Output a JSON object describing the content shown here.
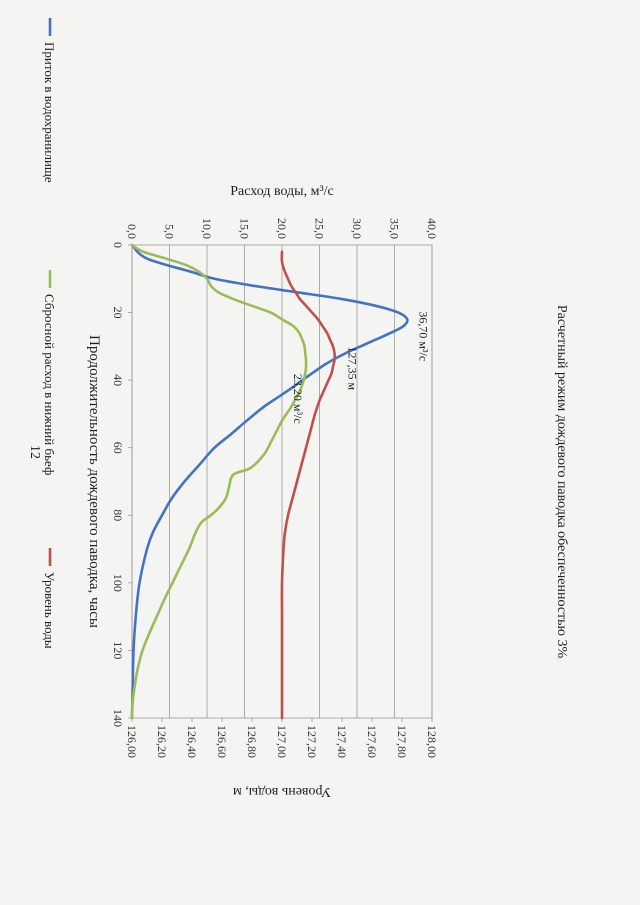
{
  "page": {
    "number": "12"
  },
  "chart_data": {
    "type": "line",
    "title": "Расчетный режим дождевого паводка обеспеченностью 3%",
    "xlabel": "Продолжительность дождевого паводка, часы",
    "ylabel": "Расход воды, м³/с",
    "y2label": "Уровень воды, м",
    "xlim": [
      0,
      140
    ],
    "ylim": [
      0,
      40
    ],
    "y2lim": [
      126,
      128
    ],
    "x_ticks": [
      "0",
      "20",
      "40",
      "60",
      "80",
      "100",
      "120",
      "140"
    ],
    "y_ticks": [
      "0,0",
      "5,0",
      "10,0",
      "15,0",
      "20,0",
      "25,0",
      "30,0",
      "35,0",
      "40,0"
    ],
    "y2_ticks": [
      "126,00",
      "126,20",
      "126,40",
      "126,60",
      "126,80",
      "127,00",
      "127,20",
      "127,40",
      "127,60",
      "127,80",
      "128,00"
    ],
    "grid": true,
    "legend_position": "bottom",
    "series": [
      {
        "name": "Приток в водохранилище",
        "color": "#4472c4",
        "axis": "left",
        "x": [
          0,
          4,
          8,
          10,
          12,
          14,
          16,
          18,
          20,
          22,
          24,
          26,
          28,
          30,
          32,
          35,
          38,
          40,
          42,
          45,
          48,
          52,
          56,
          60,
          65,
          70,
          75,
          80,
          85,
          90,
          100,
          110,
          120,
          130,
          140
        ],
        "y": [
          0,
          2,
          8,
          11,
          16,
          22,
          28,
          32.5,
          35.5,
          36.7,
          36.2,
          34.5,
          32.5,
          30.5,
          28.5,
          26,
          24,
          22.7,
          21.5,
          19.5,
          17.5,
          15.3,
          13.2,
          11,
          9,
          7,
          5.3,
          4,
          2.8,
          2,
          1,
          0.5,
          0.2,
          0.1,
          0
        ]
      },
      {
        "name": "Сбросной расход в нижний бьеф",
        "color": "#9bbb59",
        "axis": "left",
        "x": [
          0,
          2,
          4,
          6,
          8,
          10,
          12,
          14,
          16,
          18,
          20,
          22,
          24,
          26,
          28,
          30,
          32,
          34,
          36,
          38,
          40,
          42,
          44,
          46,
          48,
          50,
          52,
          55,
          58,
          62,
          66,
          68,
          72,
          75,
          78,
          80,
          82,
          85,
          90,
          95,
          100,
          105,
          110,
          115,
          120,
          125,
          130,
          135,
          140
        ],
        "y": [
          0,
          1.5,
          4.5,
          7.3,
          9,
          10,
          10.5,
          11.5,
          13.5,
          16,
          18.5,
          20,
          21.5,
          22.3,
          22.7,
          23,
          23.1,
          23.2,
          23.2,
          23.1,
          22.9,
          22.6,
          22.2,
          21.7,
          21.2,
          20.6,
          20,
          19.3,
          18.6,
          17.6,
          15.8,
          13.5,
          12.9,
          12.5,
          11.5,
          10.5,
          9.3,
          8.5,
          7.6,
          6.5,
          5.4,
          4.3,
          3.3,
          2.3,
          1.4,
          0.8,
          0.4,
          0.1,
          0
        ]
      },
      {
        "name": "Уровень воды",
        "color": "#c0504d",
        "axis": "right",
        "x": [
          2,
          5,
          8,
          10,
          12,
          14,
          16,
          18,
          20,
          22,
          24,
          26,
          28,
          30,
          32,
          34,
          36,
          38,
          40,
          42,
          44,
          46,
          50,
          55,
          60,
          65,
          70,
          75,
          80,
          85,
          90,
          100,
          110,
          120,
          130,
          140
        ],
        "y": [
          127.0,
          127.0,
          127.02,
          127.04,
          127.06,
          127.09,
          127.12,
          127.16,
          127.2,
          127.24,
          127.27,
          127.3,
          127.32,
          127.34,
          127.35,
          127.35,
          127.34,
          127.33,
          127.31,
          127.29,
          127.27,
          127.25,
          127.22,
          127.19,
          127.16,
          127.13,
          127.1,
          127.07,
          127.04,
          127.02,
          127.01,
          127.0,
          127.0,
          127.0,
          127.0,
          127.0
        ]
      }
    ],
    "annotations": [
      {
        "text": "36,70 м³/с",
        "x": 22,
        "y": 36.7,
        "axis": "left"
      },
      {
        "text": "23,20 м³/с",
        "x": 34,
        "y": 23.2,
        "axis": "left"
      },
      {
        "text": "127,35 м",
        "x": 33,
        "y": 127.35,
        "axis": "right"
      }
    ]
  }
}
